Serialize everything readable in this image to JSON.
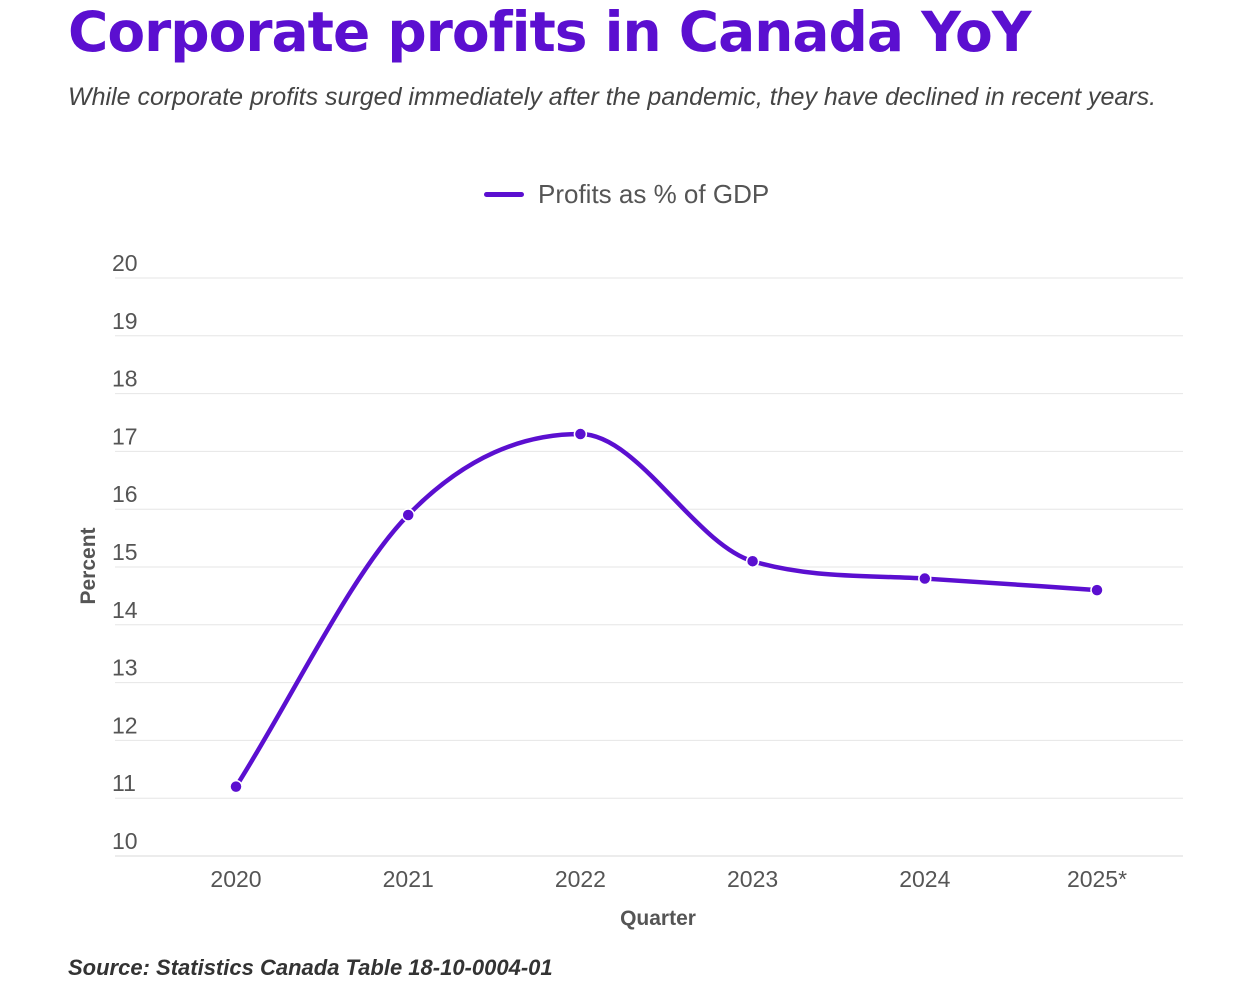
{
  "header": {
    "title": "Corporate profits in Canada YoY",
    "subtitle": "While corporate profits surged immediately after the pandemic, they have declined in recent years."
  },
  "footer": {
    "source": "Source: Statistics Canada Table 18-10-0004-01"
  },
  "colors": {
    "accent": "#5b0fd0",
    "grid": "#e6e6e6"
  },
  "chart_data": {
    "type": "line",
    "title": "Corporate profits in Canada YoY",
    "xlabel": "Quarter",
    "ylabel": "Percent",
    "ylim": [
      10,
      20
    ],
    "yticks": [
      10,
      11,
      12,
      13,
      14,
      15,
      16,
      17,
      18,
      19,
      20
    ],
    "categories": [
      "2020",
      "2021",
      "2022",
      "2023",
      "2024",
      "2025*"
    ],
    "series": [
      {
        "name": "Profits as % of GDP",
        "values": [
          11.2,
          15.9,
          17.3,
          15.1,
          14.8,
          14.6
        ]
      }
    ],
    "legend": "top-center",
    "grid": true,
    "curve": "smooth"
  }
}
